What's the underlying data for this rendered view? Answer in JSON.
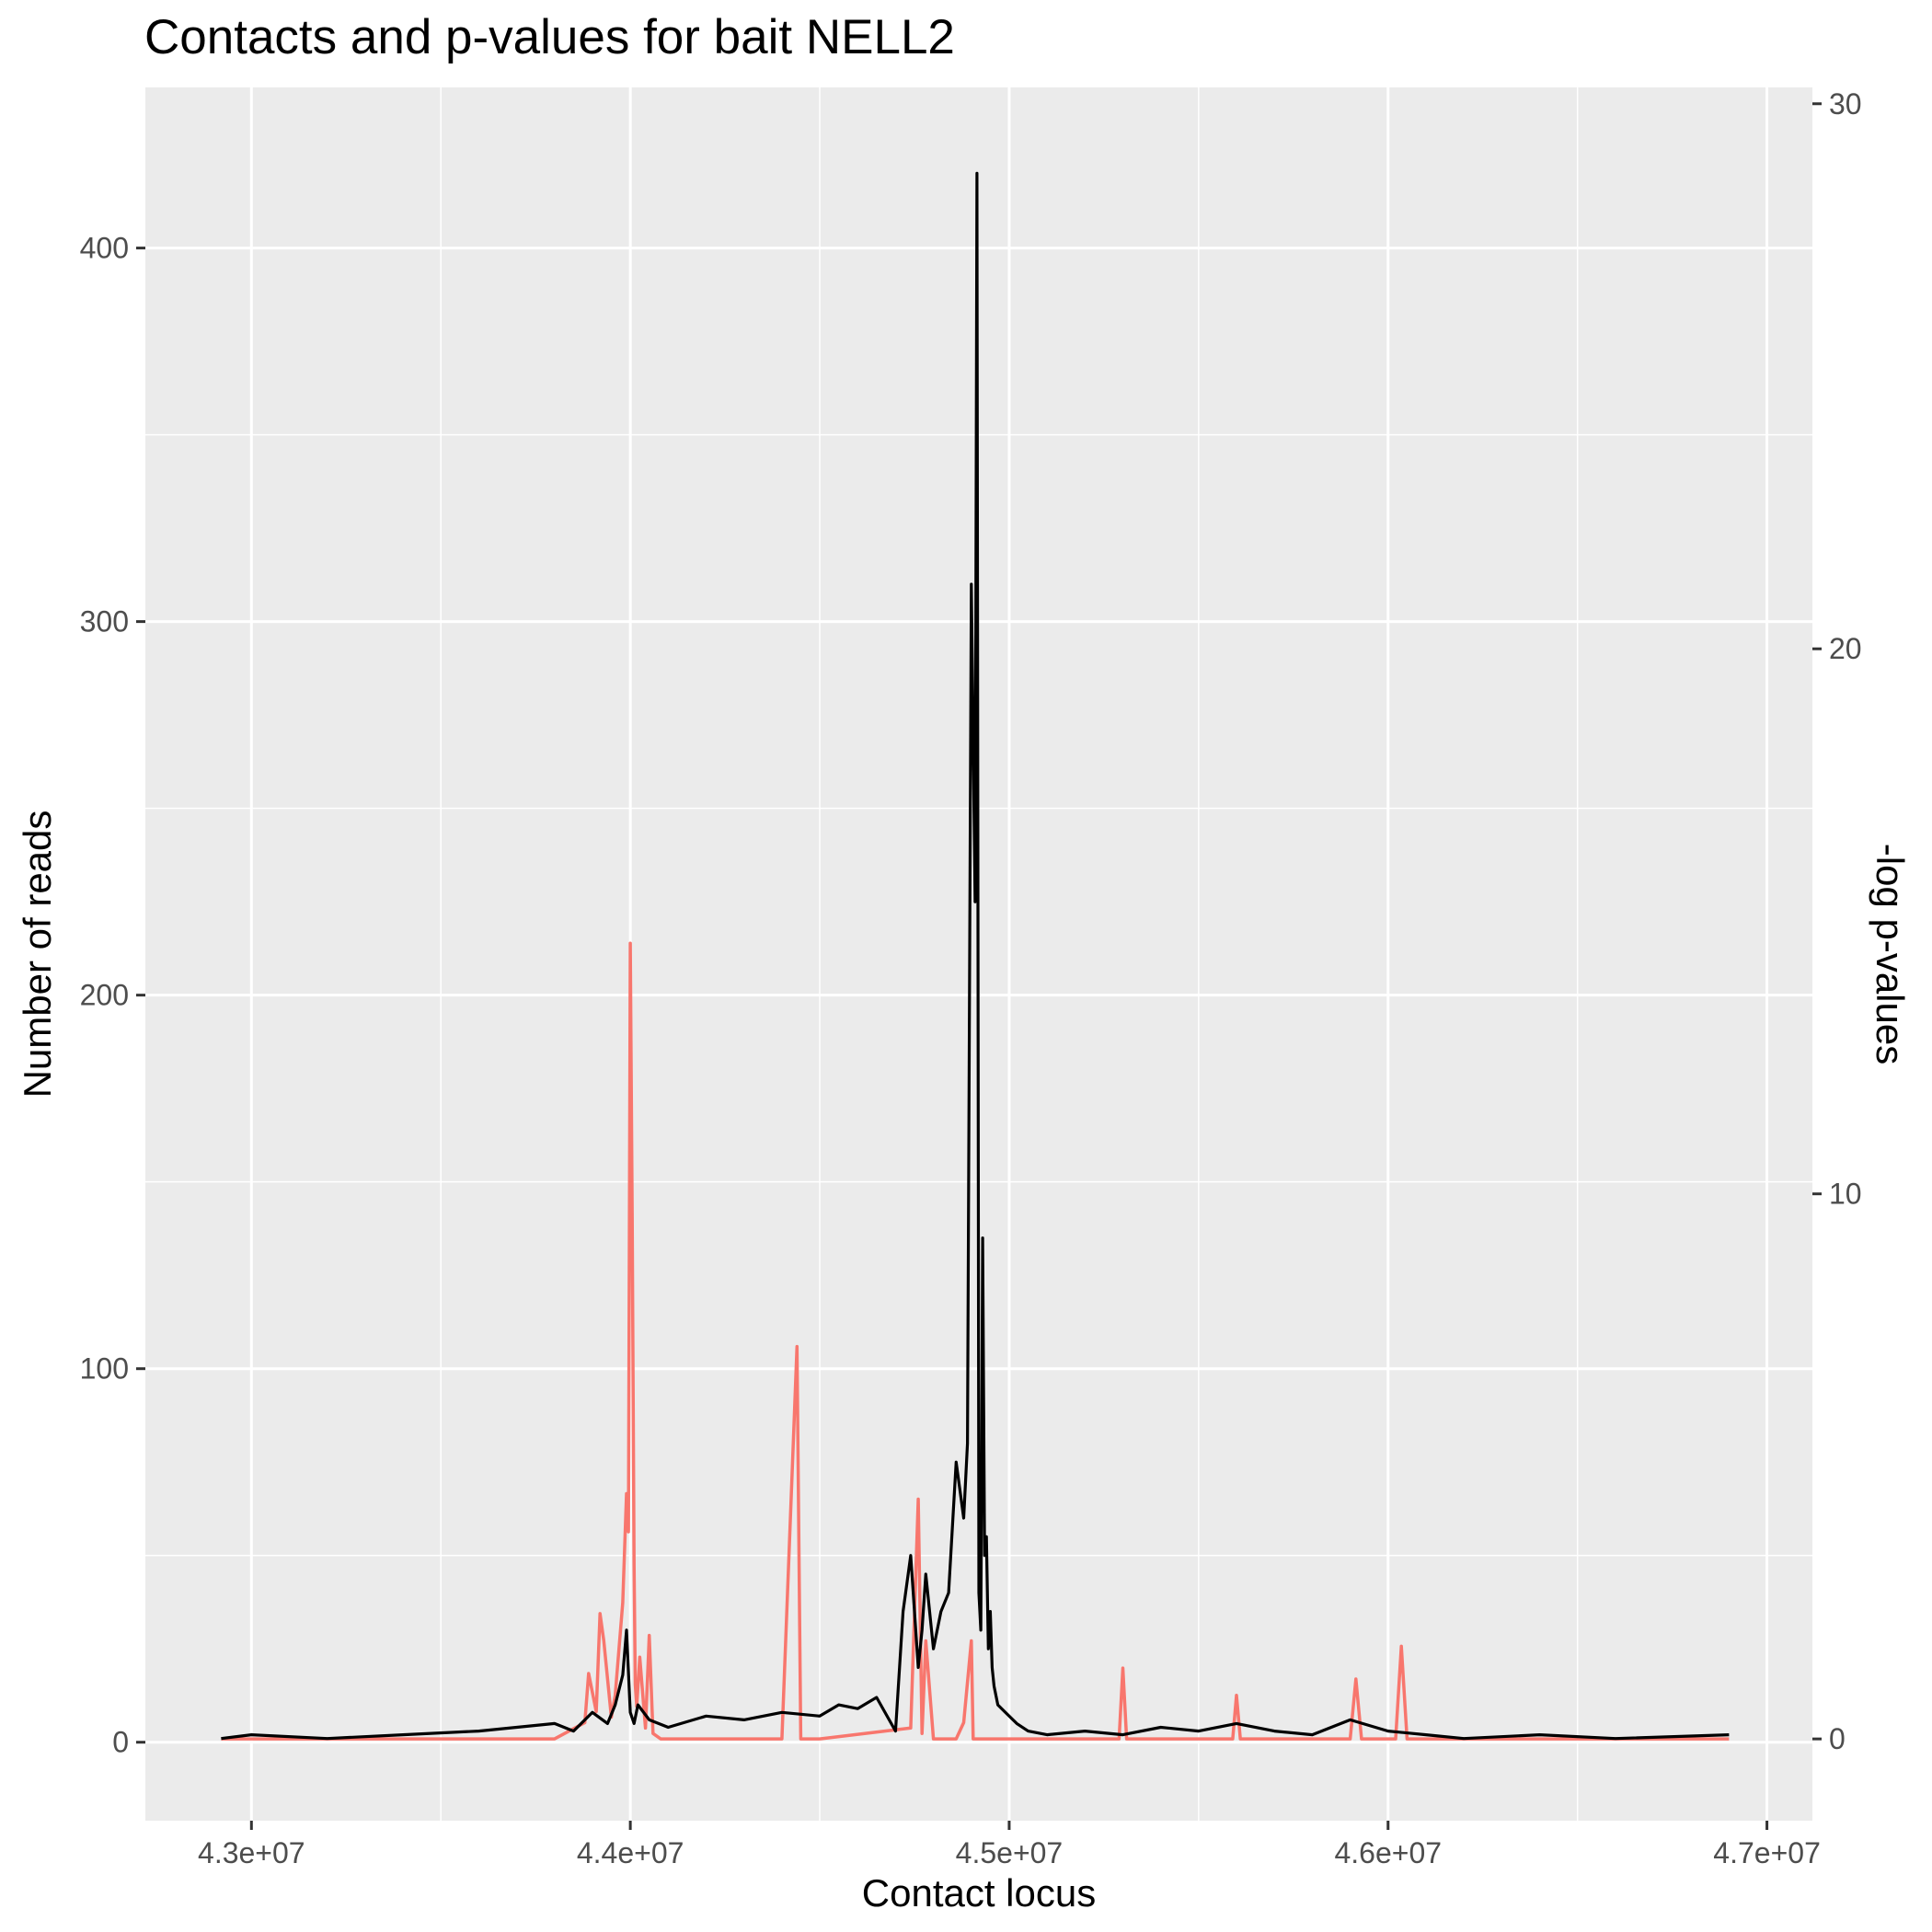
{
  "chart_data": {
    "type": "line",
    "title": "Contacts and p-values for bait NELL2",
    "xlabel": "Contact locus",
    "ylabel": "Number of reads",
    "y2label": "-log p-values",
    "xlim": [
      42720000,
      47120000
    ],
    "ylim": [
      -21,
      443
    ],
    "y2lim": [
      -1.5,
      30.3
    ],
    "x_ticks": [
      43000000,
      44000000,
      45000000,
      46000000,
      47000000
    ],
    "x_tick_labels": [
      "4.3e+07",
      "4.4e+07",
      "4.5e+07",
      "4.6e+07",
      "4.7e+07"
    ],
    "y_ticks": [
      0,
      100,
      200,
      300,
      400
    ],
    "y_tick_labels": [
      "0",
      "100",
      "200",
      "300",
      "400"
    ],
    "y2_ticks": [
      0,
      10,
      20,
      30
    ],
    "y2_tick_labels": [
      "0",
      "10",
      "20",
      "30"
    ],
    "background": "#ebebeb",
    "grid": true,
    "legend": "none",
    "series": [
      {
        "axis": "right",
        "color": "#f8766d",
        "x": [
          42920000,
          43800000,
          43880000,
          43890000,
          43910000,
          43920000,
          43930000,
          43950000,
          43960000,
          43980000,
          43990000,
          43995000,
          44000000,
          44005000,
          44010000,
          44013000,
          44017000,
          44025000,
          44040000,
          44050000,
          44060000,
          44080000,
          44100000,
          44400000,
          44440000,
          44450000,
          44470000,
          44500000,
          44740000,
          44760000,
          44770000,
          44780000,
          44800000,
          44830000,
          44860000,
          44880000,
          44900000,
          44905000,
          44910000,
          44920000,
          44930000,
          45090000,
          45290000,
          45300000,
          45310000,
          45590000,
          45600000,
          45610000,
          45900000,
          45915000,
          45930000,
          46020000,
          46035000,
          46050000,
          46080000,
          46900000
        ],
        "values": [
          0,
          0,
          0.3,
          1.2,
          0.5,
          2.3,
          1.8,
          0.4,
          0.8,
          2.5,
          4.5,
          3.8,
          14.6,
          9.5,
          3.2,
          1.0,
          0.6,
          1.5,
          0.2,
          1.9,
          0.1,
          0,
          0,
          0,
          7.2,
          0,
          0,
          0,
          0.2,
          4.4,
          0.1,
          1.8,
          0,
          0,
          0,
          0.3,
          1.8,
          0,
          0,
          0,
          0,
          0,
          0,
          1.3,
          0,
          0,
          0.8,
          0,
          0,
          1.1,
          0,
          0,
          1.7,
          0,
          0,
          0
        ]
      },
      {
        "axis": "left",
        "color": "#000000",
        "x": [
          42920000,
          43000000,
          43200000,
          43400000,
          43600000,
          43700000,
          43800000,
          43850000,
          43900000,
          43940000,
          43960000,
          43980000,
          43990000,
          44000000,
          44010000,
          44020000,
          44050000,
          44100000,
          44200000,
          44300000,
          44400000,
          44500000,
          44550000,
          44600000,
          44650000,
          44700000,
          44720000,
          44740000,
          44760000,
          44770000,
          44780000,
          44800000,
          44820000,
          44840000,
          44860000,
          44880000,
          44890000,
          44900000,
          44910000,
          44915000,
          44920000,
          44925000,
          44930000,
          44935000,
          44940000,
          44945000,
          44950000,
          44955000,
          44960000,
          44970000,
          44990000,
          45020000,
          45050000,
          45100000,
          45200000,
          45300000,
          45400000,
          45500000,
          45600000,
          45700000,
          45800000,
          45900000,
          46000000,
          46100000,
          46200000,
          46400000,
          46600000,
          46900000
        ],
        "values": [
          1,
          2,
          1,
          2,
          3,
          4,
          5,
          3,
          8,
          5,
          10,
          18,
          30,
          8,
          5,
          10,
          6,
          4,
          7,
          6,
          8,
          7,
          10,
          9,
          12,
          3,
          35,
          50,
          20,
          30,
          45,
          25,
          35,
          40,
          75,
          60,
          80,
          310,
          225,
          420,
          40,
          30,
          135,
          50,
          55,
          25,
          35,
          20,
          15,
          10,
          8,
          5,
          3,
          2,
          3,
          2,
          4,
          3,
          5,
          3,
          2,
          6,
          3,
          2,
          1,
          2,
          1,
          2
        ]
      }
    ]
  }
}
